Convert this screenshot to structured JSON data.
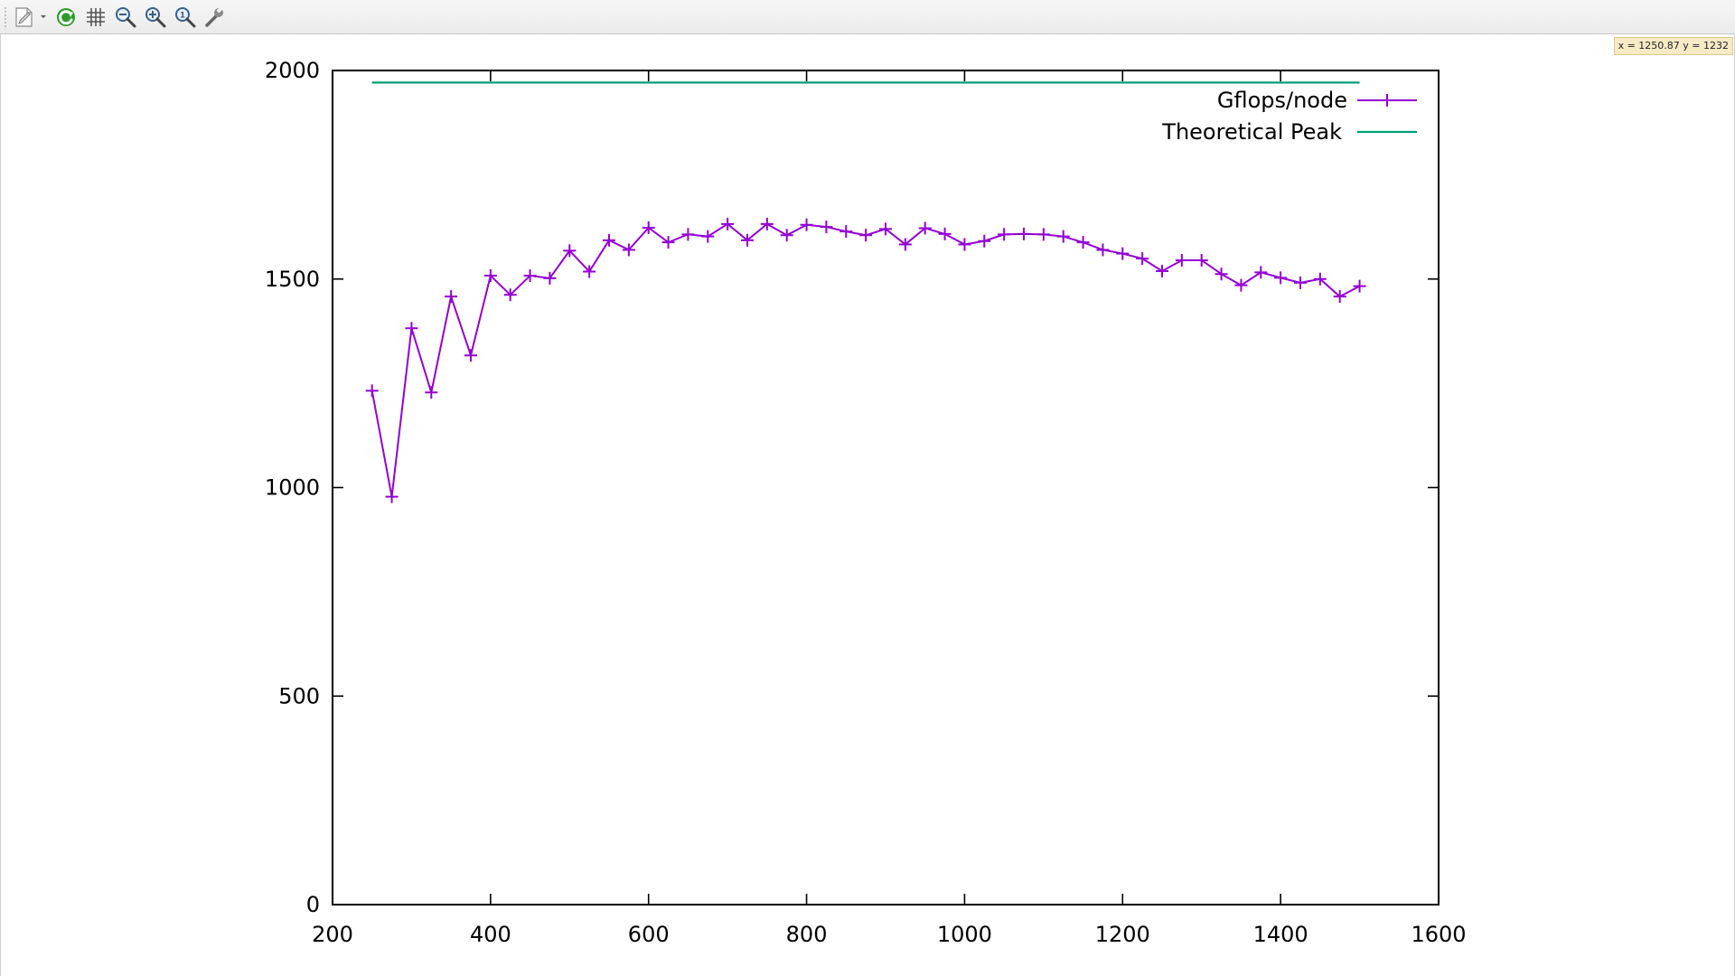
{
  "toolbar": {
    "buttons": [
      {
        "name": "export-menu-button",
        "icon": "document-export-icon"
      },
      {
        "name": "replot-button",
        "icon": "refresh-icon"
      },
      {
        "name": "grid-toggle-button",
        "icon": "grid-icon"
      },
      {
        "name": "zoom-previous-button",
        "icon": "zoom-out-icon"
      },
      {
        "name": "zoom-next-button",
        "icon": "zoom-in-icon"
      },
      {
        "name": "autoscale-button",
        "icon": "zoom-fit-icon"
      },
      {
        "name": "settings-button",
        "icon": "wrench-icon"
      }
    ]
  },
  "status": {
    "coordinates": "x = 1250.87  y = 1232"
  },
  "colors": {
    "gflops": "#9400d3",
    "peak": "#009e73",
    "axis": "#000000",
    "readout_bg": "#f7ebc6"
  },
  "chart_data": {
    "type": "line",
    "title": "",
    "xlabel": "",
    "ylabel": "",
    "xlim": [
      200,
      1600
    ],
    "ylim": [
      0,
      2000
    ],
    "xticks": [
      200,
      400,
      600,
      800,
      1000,
      1200,
      1400,
      1600
    ],
    "yticks": [
      0,
      500,
      1000,
      1500,
      2000
    ],
    "grid": false,
    "legend_position": "top-right",
    "series": [
      {
        "name": "Gflops/node",
        "marker": "plus",
        "color": "#9400d3",
        "x": [
          250,
          275,
          300,
          325,
          350,
          375,
          400,
          425,
          450,
          475,
          500,
          525,
          550,
          575,
          600,
          625,
          650,
          675,
          700,
          725,
          750,
          775,
          800,
          825,
          850,
          875,
          900,
          925,
          950,
          975,
          1000,
          1025,
          1050,
          1075,
          1100,
          1125,
          1150,
          1175,
          1200,
          1225,
          1250,
          1275,
          1300,
          1325,
          1350,
          1375,
          1400,
          1425,
          1450,
          1475,
          1500
        ],
        "y": [
          1232,
          978,
          1382,
          1228,
          1458,
          1317,
          1508,
          1462,
          1508,
          1502,
          1568,
          1518,
          1593,
          1570,
          1623,
          1588,
          1607,
          1602,
          1632,
          1593,
          1632,
          1605,
          1630,
          1625,
          1614,
          1605,
          1620,
          1583,
          1622,
          1608,
          1583,
          1591,
          1607,
          1608,
          1607,
          1602,
          1588,
          1570,
          1561,
          1549,
          1519,
          1545,
          1545,
          1512,
          1485,
          1516,
          1503,
          1491,
          1500,
          1458,
          1483
        ]
      },
      {
        "name": "Theoretical Peak",
        "marker": "none",
        "color": "#009e73",
        "x": [
          250,
          1500
        ],
        "y": [
          1971,
          1971
        ]
      }
    ]
  }
}
